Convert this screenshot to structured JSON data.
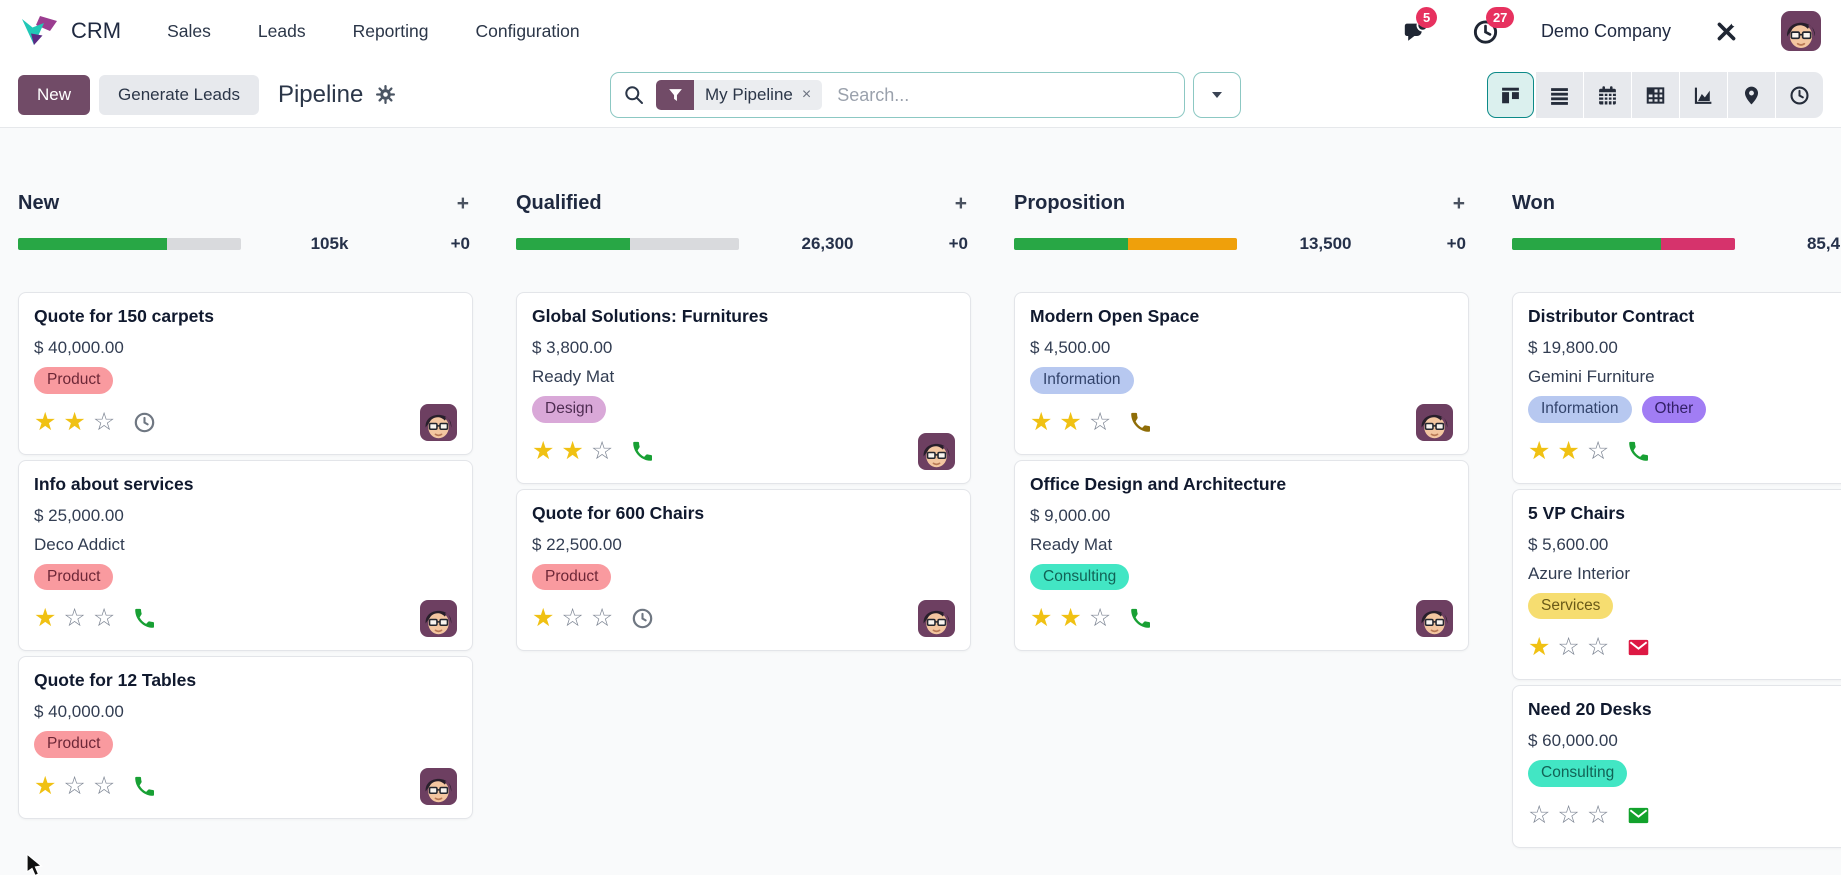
{
  "app": {
    "name": "CRM"
  },
  "nav": {
    "items": [
      {
        "label": "Sales"
      },
      {
        "label": "Leads"
      },
      {
        "label": "Reporting"
      },
      {
        "label": "Configuration"
      }
    ]
  },
  "systray": {
    "messages_badge": "5",
    "activities_badge": "27",
    "company": "Demo Company"
  },
  "control_panel": {
    "new_button": "New",
    "generate_leads_button": "Generate Leads",
    "title": "Pipeline",
    "search": {
      "facet_label": "My Pipeline",
      "placeholder": "Search..."
    }
  },
  "icons": {
    "plus": "+",
    "close": "×",
    "star_filled": "★",
    "star_empty": "☆"
  },
  "colors": {
    "primary": "#714B67",
    "view_active_teal": "#0c8a88",
    "progress_green": "#28a745",
    "progress_orange": "#efa00b",
    "progress_red": "#d6336c",
    "badge_red": "#e7315f"
  },
  "view_switcher": [
    {
      "name": "kanban",
      "active": true
    },
    {
      "name": "list",
      "active": false
    },
    {
      "name": "calendar",
      "active": false
    },
    {
      "name": "pivot",
      "active": false
    },
    {
      "name": "graph",
      "active": false
    },
    {
      "name": "map",
      "active": false
    },
    {
      "name": "activity",
      "active": false
    }
  ],
  "board": {
    "columns": [
      {
        "name": "New",
        "amount": "105k",
        "counter": "+0",
        "progress": [
          {
            "color": "#28a745",
            "width": "67%"
          }
        ],
        "cards": [
          {
            "title": "Quote for 150 carpets",
            "amount": "$ 40,000.00",
            "tags": [
              {
                "label": "Product",
                "bg": "#f99a9f",
                "fg": "#6d2737"
              }
            ],
            "stars": 2,
            "activity": {
              "type": "clock",
              "color": "#6f7782"
            }
          },
          {
            "title": "Info about services",
            "amount": "$ 25,000.00",
            "company": "Deco Addict",
            "tags": [
              {
                "label": "Product",
                "bg": "#f99a9f",
                "fg": "#6d2737"
              }
            ],
            "stars": 1,
            "activity": {
              "type": "phone",
              "color": "#18a034"
            }
          },
          {
            "title": "Quote for 12 Tables",
            "amount": "$ 40,000.00",
            "tags": [
              {
                "label": "Product",
                "bg": "#f99a9f",
                "fg": "#6d2737"
              }
            ],
            "stars": 1,
            "activity": {
              "type": "phone",
              "color": "#18a034"
            }
          }
        ]
      },
      {
        "name": "Qualified",
        "amount": "26,300",
        "counter": "+0",
        "progress": [
          {
            "color": "#28a745",
            "width": "51%"
          }
        ],
        "cards": [
          {
            "title": "Global Solutions: Furnitures",
            "amount": "$ 3,800.00",
            "company": "Ready Mat",
            "tags": [
              {
                "label": "Design",
                "bg": "#d9a8d8",
                "fg": "#4e2c52"
              }
            ],
            "stars": 2,
            "activity": {
              "type": "phone",
              "color": "#18a034"
            }
          },
          {
            "title": "Quote for 600 Chairs",
            "amount": "$ 22,500.00",
            "tags": [
              {
                "label": "Product",
                "bg": "#f99a9f",
                "fg": "#6d2737"
              }
            ],
            "stars": 1,
            "activity": {
              "type": "clock",
              "color": "#6f7782"
            }
          }
        ]
      },
      {
        "name": "Proposition",
        "amount": "13,500",
        "counter": "+0",
        "progress": [
          {
            "color": "#28a745",
            "width": "51%"
          },
          {
            "color": "#efa00b",
            "width": "49%"
          }
        ],
        "cards": [
          {
            "title": "Modern Open Space",
            "amount": "$ 4,500.00",
            "tags": [
              {
                "label": "Information",
                "bg": "#b7c8f0",
                "fg": "#32436b"
              }
            ],
            "stars": 2,
            "activity": {
              "type": "phone",
              "color": "#8f6d07"
            }
          },
          {
            "title": "Office Design and Architecture",
            "amount": "$ 9,000.00",
            "company": "Ready Mat",
            "tags": [
              {
                "label": "Consulting",
                "bg": "#42e6c4",
                "fg": "#116356"
              }
            ],
            "stars": 2,
            "activity": {
              "type": "phone",
              "color": "#18a034"
            }
          }
        ]
      },
      {
        "name": "Won",
        "amount": "85,4",
        "counter": "",
        "progress": [
          {
            "color": "#28a745",
            "width": "67%"
          },
          {
            "color": "#d6336c",
            "width": "33%"
          }
        ],
        "cards": [
          {
            "title": "Distributor Contract",
            "amount": "$ 19,800.00",
            "company": "Gemini Furniture",
            "tags": [
              {
                "label": "Information",
                "bg": "#b7c8f0",
                "fg": "#32436b"
              },
              {
                "label": "Other",
                "bg": "#a17df4",
                "fg": "#321f66"
              }
            ],
            "stars": 2,
            "activity": {
              "type": "phone",
              "color": "#18a034"
            }
          },
          {
            "title": "5 VP Chairs",
            "amount": "$ 5,600.00",
            "company": "Azure Interior",
            "tags": [
              {
                "label": "Services",
                "bg": "#f6dd70",
                "fg": "#6a5a18"
              }
            ],
            "stars": 1,
            "activity": {
              "type": "mail",
              "color": "#dd1843"
            }
          },
          {
            "title": "Need 20 Desks",
            "amount": "$ 60,000.00",
            "tags": [
              {
                "label": "Consulting",
                "bg": "#42e6c4",
                "fg": "#116356"
              }
            ],
            "stars": 0,
            "activity": {
              "type": "mail",
              "color": "#12a22c"
            }
          }
        ]
      }
    ]
  }
}
